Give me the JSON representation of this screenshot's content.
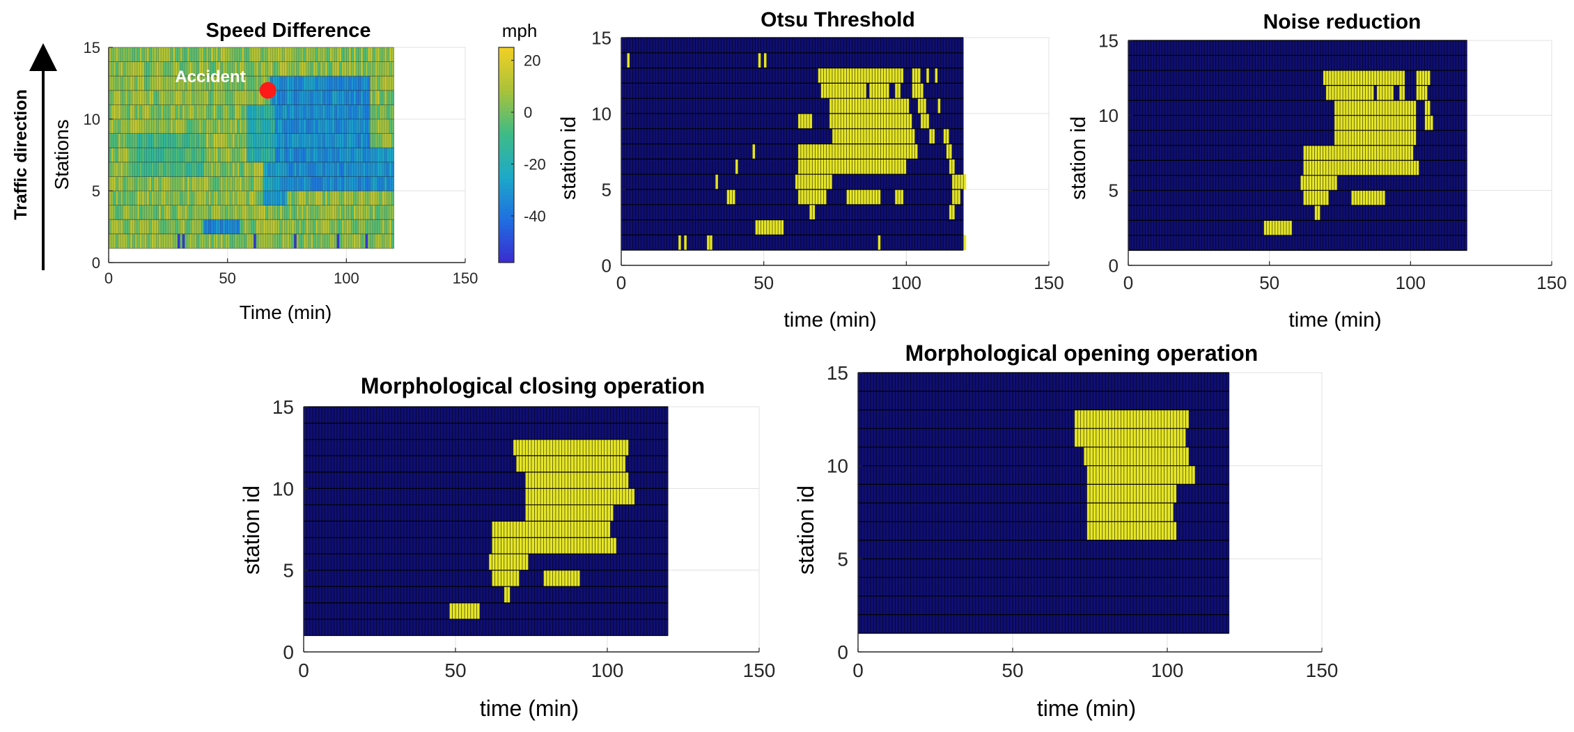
{
  "colors": {
    "background": "#0f0f73",
    "event": "#e6e627",
    "grid": "#000000",
    "axis": "#262626",
    "accident_marker": "#ff1a1a",
    "colormap": [
      "#3b2bcf",
      "#1f6fe0",
      "#1da9c8",
      "#3fbb86",
      "#a9c23a",
      "#f2d024"
    ]
  },
  "annotations": {
    "traffic_direction": "Traffic direction",
    "accident": "Accident"
  },
  "chart_data": [
    {
      "id": "speed",
      "type": "heatmap",
      "title": "Speed Difference",
      "xlabel": "Time (min)",
      "ylabel": "Stations",
      "xlim": [
        0,
        150
      ],
      "ylim": [
        0,
        15
      ],
      "xticks": [
        0,
        50,
        100,
        150
      ],
      "yticks": [
        0,
        5,
        10,
        15
      ],
      "grid": true,
      "data_extent": {
        "x": [
          0,
          120
        ],
        "y": [
          1,
          15
        ]
      },
      "accident": {
        "time": 67,
        "station": 12
      },
      "colorbar": {
        "label": "mph",
        "ticks": [
          20,
          0,
          -20,
          -40
        ],
        "range": [
          -58,
          25
        ]
      },
      "regions": [
        {
          "t": [
            68,
            110
          ],
          "s": [
            5,
            13
          ],
          "value": -32
        },
        {
          "t": [
            58,
            70
          ],
          "s": [
            7,
            11
          ],
          "value": -18
        },
        {
          "t": [
            65,
            75
          ],
          "s": [
            4,
            7
          ],
          "value": -28
        },
        {
          "t": [
            110,
            120
          ],
          "s": [
            5,
            8
          ],
          "value": -30
        },
        {
          "t": [
            40,
            55
          ],
          "s": [
            2,
            3
          ],
          "value": -35
        },
        {
          "t": [
            10,
            40
          ],
          "s": [
            6,
            9
          ],
          "value": -8
        }
      ]
    },
    {
      "id": "otsu",
      "type": "heatmap",
      "title": "Otsu Threshold",
      "xlabel": "time (min)",
      "ylabel": "station id",
      "xlim": [
        0,
        150
      ],
      "ylim": [
        0,
        15
      ],
      "xticks": [
        0,
        50,
        100,
        150
      ],
      "yticks": [
        0,
        5,
        10,
        15
      ],
      "grid": true,
      "data_extent": {
        "x": [
          0,
          120
        ],
        "y": [
          1,
          15
        ]
      },
      "events": [
        {
          "row": 13,
          "t0": 2,
          "t1": 3
        },
        {
          "row": 13,
          "t0": 48,
          "t1": 49
        },
        {
          "row": 13,
          "t0": 50,
          "t1": 51
        },
        {
          "row": 12,
          "t0": 69,
          "t1": 99
        },
        {
          "row": 12,
          "t0": 102,
          "t1": 105
        },
        {
          "row": 12,
          "t0": 107,
          "t1": 108
        },
        {
          "row": 12,
          "t0": 110,
          "t1": 111
        },
        {
          "row": 11,
          "t0": 70,
          "t1": 86
        },
        {
          "row": 11,
          "t0": 87,
          "t1": 94
        },
        {
          "row": 11,
          "t0": 96,
          "t1": 98
        },
        {
          "row": 11,
          "t0": 102,
          "t1": 106
        },
        {
          "row": 10,
          "t0": 73,
          "t1": 101
        },
        {
          "row": 10,
          "t0": 104,
          "t1": 107
        },
        {
          "row": 10,
          "t0": 111,
          "t1": 112
        },
        {
          "row": 9,
          "t0": 62,
          "t1": 67
        },
        {
          "row": 9,
          "t0": 73,
          "t1": 102
        },
        {
          "row": 9,
          "t0": 105,
          "t1": 108
        },
        {
          "row": 8,
          "t0": 74,
          "t1": 103
        },
        {
          "row": 8,
          "t0": 108,
          "t1": 110
        },
        {
          "row": 8,
          "t0": 113,
          "t1": 115
        },
        {
          "row": 7,
          "t0": 46,
          "t1": 47
        },
        {
          "row": 7,
          "t0": 62,
          "t1": 104
        },
        {
          "row": 7,
          "t0": 114,
          "t1": 116
        },
        {
          "row": 6,
          "t0": 40,
          "t1": 41
        },
        {
          "row": 6,
          "t0": 62,
          "t1": 100
        },
        {
          "row": 6,
          "t0": 115,
          "t1": 117
        },
        {
          "row": 5,
          "t0": 33,
          "t1": 34
        },
        {
          "row": 5,
          "t0": 61,
          "t1": 74
        },
        {
          "row": 5,
          "t0": 116,
          "t1": 121
        },
        {
          "row": 4,
          "t0": 37,
          "t1": 40
        },
        {
          "row": 4,
          "t0": 62,
          "t1": 72
        },
        {
          "row": 4,
          "t0": 79,
          "t1": 91
        },
        {
          "row": 4,
          "t0": 96,
          "t1": 99
        },
        {
          "row": 4,
          "t0": 116,
          "t1": 119
        },
        {
          "row": 3,
          "t0": 66,
          "t1": 68
        },
        {
          "row": 3,
          "t0": 115,
          "t1": 117
        },
        {
          "row": 2,
          "t0": 47,
          "t1": 57
        },
        {
          "row": 1,
          "t0": 20,
          "t1": 21
        },
        {
          "row": 1,
          "t0": 22,
          "t1": 23
        },
        {
          "row": 1,
          "t0": 30,
          "t1": 32
        },
        {
          "row": 1,
          "t0": 90,
          "t1": 91
        },
        {
          "row": 1,
          "t0": 120,
          "t1": 121
        }
      ]
    },
    {
      "id": "noise",
      "type": "heatmap",
      "title": "Noise reduction",
      "xlabel": "time (min)",
      "ylabel": "station id",
      "xlim": [
        0,
        150
      ],
      "ylim": [
        0,
        15
      ],
      "xticks": [
        0,
        50,
        100,
        150
      ],
      "yticks": [
        0,
        5,
        10,
        15
      ],
      "grid": true,
      "data_extent": {
        "x": [
          0,
          120
        ],
        "y": [
          1,
          15
        ]
      },
      "events": [
        {
          "row": 12,
          "t0": 69,
          "t1": 98
        },
        {
          "row": 12,
          "t0": 102,
          "t1": 107
        },
        {
          "row": 11,
          "t0": 70,
          "t1": 87
        },
        {
          "row": 11,
          "t0": 88,
          "t1": 94
        },
        {
          "row": 11,
          "t0": 96,
          "t1": 98
        },
        {
          "row": 11,
          "t0": 102,
          "t1": 106
        },
        {
          "row": 10,
          "t0": 73,
          "t1": 102
        },
        {
          "row": 10,
          "t0": 105,
          "t1": 107
        },
        {
          "row": 9,
          "t0": 73,
          "t1": 102
        },
        {
          "row": 9,
          "t0": 105,
          "t1": 108
        },
        {
          "row": 8,
          "t0": 73,
          "t1": 102
        },
        {
          "row": 7,
          "t0": 62,
          "t1": 101
        },
        {
          "row": 6,
          "t0": 62,
          "t1": 103
        },
        {
          "row": 5,
          "t0": 61,
          "t1": 74
        },
        {
          "row": 4,
          "t0": 62,
          "t1": 71
        },
        {
          "row": 4,
          "t0": 79,
          "t1": 91
        },
        {
          "row": 3,
          "t0": 66,
          "t1": 68
        },
        {
          "row": 2,
          "t0": 48,
          "t1": 58
        }
      ]
    },
    {
      "id": "closing",
      "type": "heatmap",
      "title": "Morphological closing operation",
      "xlabel": "time (min)",
      "ylabel": "station id",
      "xlim": [
        0,
        150
      ],
      "ylim": [
        0,
        15
      ],
      "xticks": [
        0,
        50,
        100,
        150
      ],
      "yticks": [
        0,
        5,
        10,
        15
      ],
      "grid": true,
      "data_extent": {
        "x": [
          0,
          120
        ],
        "y": [
          1,
          15
        ]
      },
      "events": [
        {
          "row": 12,
          "t0": 69,
          "t1": 107
        },
        {
          "row": 11,
          "t0": 70,
          "t1": 106
        },
        {
          "row": 10,
          "t0": 73,
          "t1": 107
        },
        {
          "row": 9,
          "t0": 73,
          "t1": 109
        },
        {
          "row": 8,
          "t0": 73,
          "t1": 102
        },
        {
          "row": 7,
          "t0": 62,
          "t1": 101
        },
        {
          "row": 6,
          "t0": 62,
          "t1": 103
        },
        {
          "row": 5,
          "t0": 61,
          "t1": 74
        },
        {
          "row": 4,
          "t0": 62,
          "t1": 71
        },
        {
          "row": 4,
          "t0": 79,
          "t1": 91
        },
        {
          "row": 3,
          "t0": 66,
          "t1": 68
        },
        {
          "row": 2,
          "t0": 48,
          "t1": 58
        }
      ]
    },
    {
      "id": "opening",
      "type": "heatmap",
      "title": "Morphological opening operation",
      "xlabel": "time (min)",
      "ylabel": "station id",
      "xlim": [
        0,
        150
      ],
      "ylim": [
        0,
        15
      ],
      "xticks": [
        0,
        50,
        100,
        150
      ],
      "yticks": [
        0,
        5,
        10,
        15
      ],
      "grid": true,
      "data_extent": {
        "x": [
          0,
          120
        ],
        "y": [
          1,
          15
        ]
      },
      "events": [
        {
          "row": 12,
          "t0": 70,
          "t1": 107
        },
        {
          "row": 11,
          "t0": 70,
          "t1": 106
        },
        {
          "row": 10,
          "t0": 73,
          "t1": 107
        },
        {
          "row": 9,
          "t0": 74,
          "t1": 109
        },
        {
          "row": 8,
          "t0": 74,
          "t1": 103
        },
        {
          "row": 7,
          "t0": 74,
          "t1": 102
        },
        {
          "row": 6,
          "t0": 74,
          "t1": 103
        }
      ]
    }
  ]
}
